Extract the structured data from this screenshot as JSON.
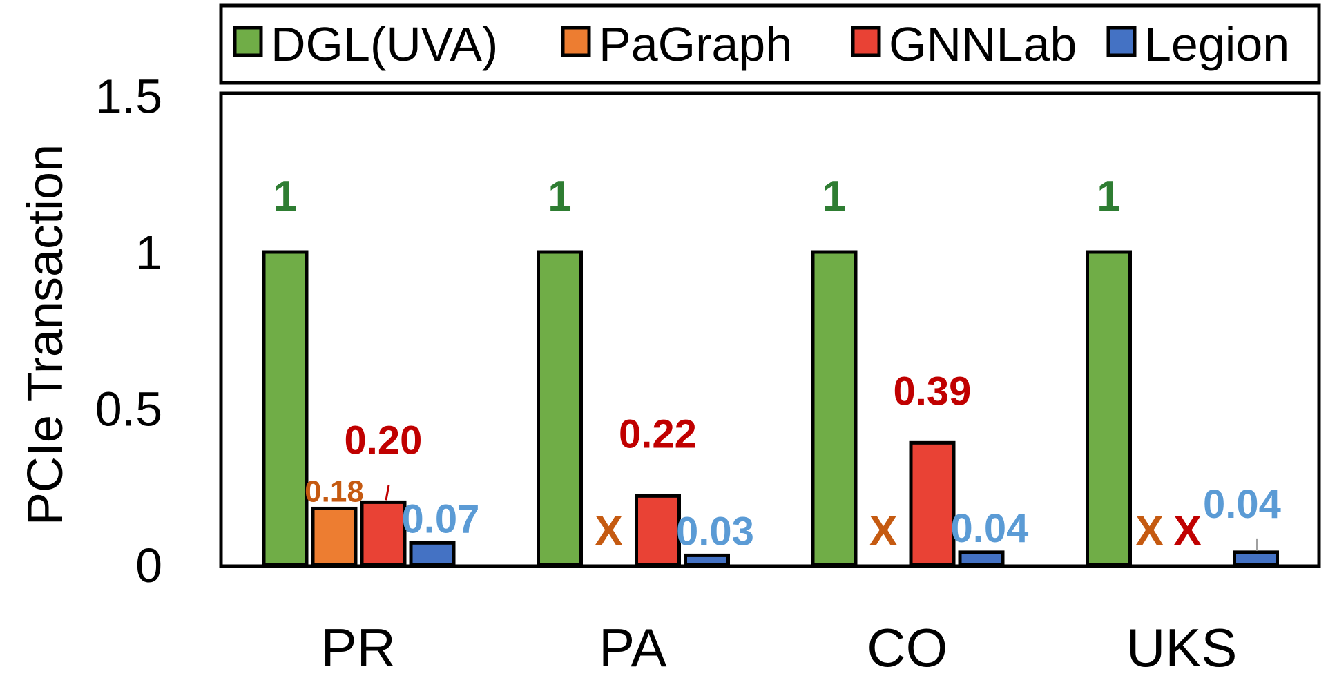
{
  "chart_data": {
    "type": "bar",
    "title": "",
    "xlabel": "",
    "ylabel": "PCIe Transaction",
    "ylim": [
      0,
      1.5
    ],
    "yticks": [
      "0",
      "0.5",
      "1",
      "1.5"
    ],
    "ytick_values": [
      0,
      0.5,
      1,
      1.5
    ],
    "categories": [
      "PR",
      "PA",
      "CO",
      "UKS"
    ],
    "legend_position": "top",
    "grid": false,
    "series": [
      {
        "name": "DGL(UVA)",
        "color": "#70ad47",
        "label_color": "#2e7d32",
        "values": [
          1,
          1,
          1,
          1
        ],
        "labels": [
          "1",
          "1",
          "1",
          "1"
        ]
      },
      {
        "name": "PaGraph",
        "color": "#ed7d31",
        "label_color": "#c55a11",
        "values": [
          0.18,
          null,
          null,
          null
        ],
        "labels": [
          "0.18",
          "X",
          "X",
          "X"
        ]
      },
      {
        "name": "GNNLab",
        "color": "#e94235",
        "label_color": "#c00000",
        "values": [
          0.2,
          0.22,
          0.39,
          null
        ],
        "labels": [
          "0.20",
          "0.22",
          "0.39",
          "X"
        ]
      },
      {
        "name": "Legion",
        "color": "#4472c4",
        "label_color": "#5b9bd5",
        "values": [
          0.07,
          0.03,
          0.04,
          0.04
        ],
        "labels": [
          "0.07",
          "0.03",
          "0.04",
          "0.04"
        ]
      }
    ]
  }
}
